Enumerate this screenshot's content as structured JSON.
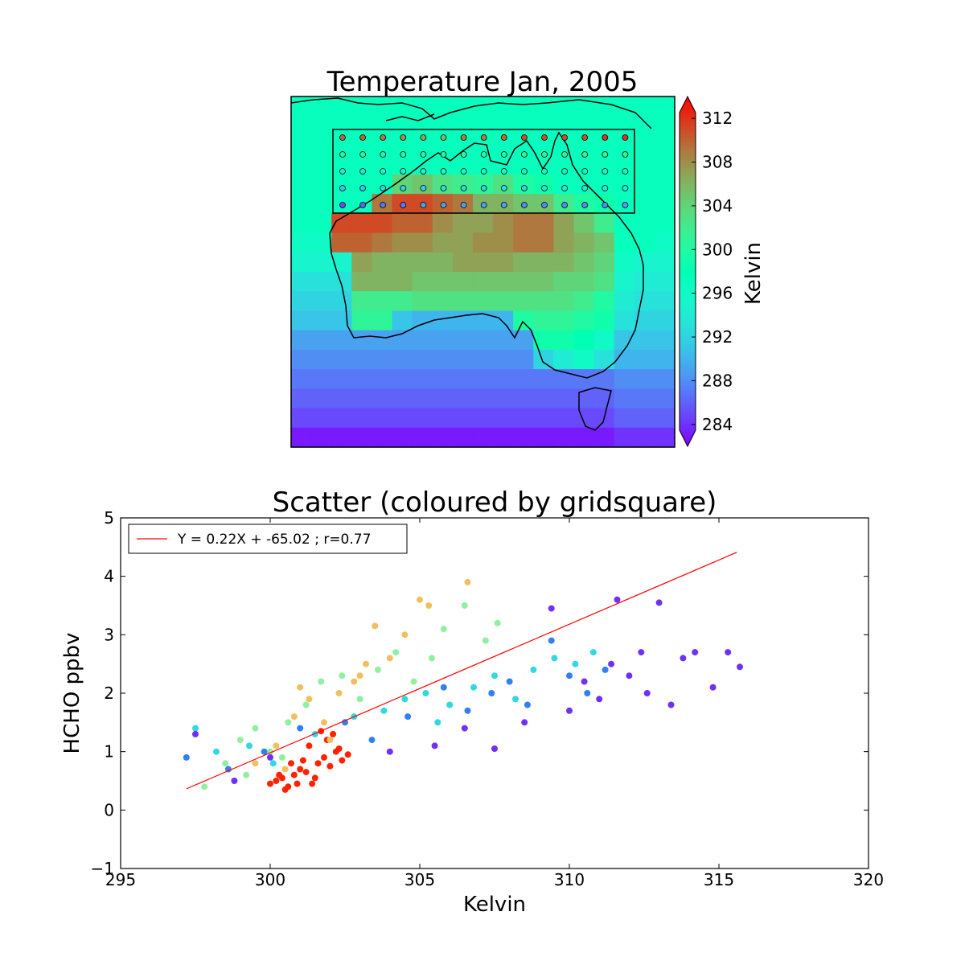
{
  "chart_data": [
    {
      "type": "heatmap",
      "title": "Temperature Jan, 2005",
      "colorbar": {
        "label": "Kelvin",
        "ticks": [
          "284",
          "288",
          "292",
          "296",
          "300",
          "304",
          "308",
          "312"
        ],
        "min": 282,
        "max": 314,
        "extend": "both",
        "colormap": "rainbow"
      },
      "grid_values": [
        [
          297,
          297,
          297,
          297,
          297,
          297,
          297,
          297,
          297,
          297,
          297,
          297,
          297,
          297,
          297,
          297,
          297,
          297,
          297
        ],
        [
          297,
          297,
          297,
          297,
          297,
          297,
          297,
          297,
          297,
          297,
          297,
          297,
          297,
          297,
          297,
          297,
          297,
          297,
          297
        ],
        [
          297,
          297,
          297,
          297,
          297,
          297,
          297,
          297,
          297,
          297,
          297,
          297,
          297,
          297,
          297,
          297,
          297,
          297,
          297
        ],
        [
          297,
          297,
          297,
          297,
          297,
          297,
          297,
          297,
          297,
          297,
          297,
          297,
          297,
          297,
          297,
          297,
          297,
          297,
          297
        ],
        [
          297,
          297,
          297,
          297,
          297,
          304,
          305,
          303,
          302,
          301,
          303,
          300,
          299,
          297,
          297,
          297,
          297,
          297,
          297
        ],
        [
          297,
          297,
          297,
          297,
          309,
          311,
          311,
          310,
          309,
          306,
          306,
          305,
          305,
          302,
          300,
          299,
          297,
          297,
          297
        ],
        [
          297,
          297,
          311,
          311,
          311,
          310,
          310,
          308,
          307,
          307,
          308,
          309,
          309,
          307,
          305,
          302,
          297,
          297,
          297
        ],
        [
          296,
          296,
          310,
          310,
          309,
          308,
          308,
          307,
          307,
          308,
          308,
          309,
          309,
          307,
          306,
          305,
          297,
          297,
          296
        ],
        [
          295,
          295,
          295,
          307,
          306,
          306,
          306,
          306,
          307,
          307,
          307,
          306,
          306,
          306,
          305,
          304,
          296,
          295,
          295
        ],
        [
          293,
          293,
          293,
          306,
          306,
          306,
          305,
          305,
          305,
          305,
          305,
          305,
          305,
          304,
          304,
          303,
          295,
          294,
          294
        ],
        [
          292,
          292,
          292,
          302,
          302,
          302,
          303,
          303,
          303,
          303,
          303,
          303,
          303,
          303,
          302,
          300,
          294,
          293,
          293
        ],
        [
          291,
          291,
          291,
          301,
          301,
          291,
          290,
          290,
          290,
          290,
          290,
          300,
          301,
          301,
          300,
          299,
          293,
          292,
          292
        ],
        [
          289,
          289,
          289,
          289,
          289,
          289,
          289,
          289,
          289,
          289,
          289,
          289,
          299,
          299,
          298,
          296,
          291,
          291,
          291
        ],
        [
          288,
          288,
          288,
          288,
          288,
          288,
          288,
          288,
          288,
          288,
          288,
          288,
          292,
          294,
          296,
          293,
          290,
          290,
          290
        ],
        [
          287,
          287,
          287,
          287,
          287,
          287,
          287,
          287,
          287,
          287,
          287,
          287,
          287,
          287,
          287,
          287,
          288,
          288,
          288
        ],
        [
          286,
          286,
          286,
          286,
          286,
          286,
          286,
          286,
          286,
          286,
          286,
          286,
          286,
          286,
          286,
          286,
          287,
          287,
          287
        ],
        [
          285,
          285,
          285,
          285,
          285,
          285,
          285,
          285,
          285,
          285,
          285,
          285,
          285,
          285,
          285,
          285,
          286,
          286,
          286
        ],
        [
          283,
          283,
          283,
          283,
          283,
          283,
          283,
          283,
          283,
          283,
          283,
          283,
          283,
          283,
          283,
          283,
          284,
          284,
          284
        ]
      ],
      "subset_box_points": [
        [
          310,
          310,
          309,
          308,
          307,
          306,
          309,
          309,
          310,
          311,
          311,
          311,
          311,
          312,
          312
        ],
        [
          300,
          300,
          300,
          300,
          300,
          301,
          301,
          300,
          300,
          301,
          301,
          301,
          301,
          301,
          302
        ],
        [
          294,
          294,
          295,
          295,
          295,
          296,
          296,
          296,
          296,
          297,
          297,
          297,
          297,
          297,
          297
        ],
        [
          291,
          291,
          292,
          292,
          292,
          293,
          293,
          292,
          293,
          292,
          294,
          294,
          294,
          294,
          294
        ],
        [
          285,
          286,
          287,
          287,
          289,
          289,
          289,
          289,
          289,
          288,
          288,
          288,
          288,
          288,
          289
        ]
      ]
    },
    {
      "type": "scatter",
      "title": "Scatter (coloured by gridsquare)",
      "xlabel": "Kelvin",
      "ylabel": "HCHO ppbv",
      "xlim": [
        295,
        320
      ],
      "ylim": [
        -1,
        5
      ],
      "xticks": [
        "295",
        "300",
        "305",
        "310",
        "315",
        "320"
      ],
      "yticks": [
        "−1",
        "0",
        "1",
        "2",
        "3",
        "4",
        "5"
      ],
      "legend": {
        "label": "Y = 0.22X + -65.02 ; r=0.77",
        "placement": "top-left",
        "color": "#ff0000"
      },
      "fit_line": {
        "slope": 0.22,
        "intercept": -65.02,
        "x": [
          297.2,
          315.6
        ]
      },
      "series": [
        {
          "color": "#ff2200",
          "points": [
            [
              300.0,
              0.45
            ],
            [
              300.2,
              0.5
            ],
            [
              300.4,
              0.55
            ],
            [
              300.6,
              0.4
            ],
            [
              300.8,
              0.6
            ],
            [
              301.0,
              0.7
            ],
            [
              301.2,
              0.65
            ],
            [
              301.4,
              0.45
            ],
            [
              301.6,
              0.8
            ],
            [
              301.8,
              0.9
            ],
            [
              302.0,
              0.75
            ],
            [
              302.2,
              1.0
            ],
            [
              302.4,
              0.85
            ],
            [
              300.5,
              0.35
            ],
            [
              300.9,
              0.45
            ],
            [
              301.5,
              0.55
            ],
            [
              301.9,
              1.2
            ],
            [
              302.1,
              1.3
            ],
            [
              302.3,
              1.05
            ],
            [
              301.7,
              1.35
            ],
            [
              300.3,
              0.6
            ],
            [
              301.1,
              0.85
            ],
            [
              302.6,
              0.95
            ],
            [
              300.7,
              0.8
            ],
            [
              301.3,
              1.1
            ]
          ]
        },
        {
          "color": "#f0c060",
          "points": [
            [
              299.5,
              0.8
            ],
            [
              300.2,
              1.1
            ],
            [
              300.8,
              1.6
            ],
            [
              301.3,
              1.9
            ],
            [
              301.8,
              1.5
            ],
            [
              302.3,
              2.0
            ],
            [
              302.8,
              2.2
            ],
            [
              303.2,
              2.5
            ],
            [
              303.5,
              3.15
            ],
            [
              304.0,
              2.6
            ],
            [
              304.5,
              3.0
            ],
            [
              305.0,
              3.6
            ],
            [
              305.3,
              3.5
            ],
            [
              306.6,
              3.9
            ],
            [
              303.0,
              2.3
            ],
            [
              302.0,
              1.2
            ],
            [
              300.5,
              0.7
            ],
            [
              301.0,
              2.1
            ]
          ]
        },
        {
          "color": "#90f0a0",
          "points": [
            [
              297.8,
              0.4
            ],
            [
              298.5,
              0.8
            ],
            [
              299.0,
              1.2
            ],
            [
              299.5,
              1.4
            ],
            [
              300.0,
              1.0
            ],
            [
              300.6,
              1.5
            ],
            [
              301.2,
              1.8
            ],
            [
              301.7,
              2.2
            ],
            [
              302.4,
              2.3
            ],
            [
              303.0,
              1.9
            ],
            [
              303.6,
              2.4
            ],
            [
              304.2,
              2.7
            ],
            [
              304.8,
              2.2
            ],
            [
              305.4,
              2.6
            ],
            [
              305.8,
              3.1
            ],
            [
              306.5,
              3.5
            ],
            [
              307.2,
              2.9
            ],
            [
              307.6,
              3.2
            ],
            [
              299.2,
              0.6
            ],
            [
              300.4,
              0.9
            ]
          ]
        },
        {
          "color": "#30d8e0",
          "points": [
            [
              297.5,
              1.4
            ],
            [
              298.2,
              1.0
            ],
            [
              299.3,
              1.1
            ],
            [
              300.1,
              0.8
            ],
            [
              301.5,
              1.3
            ],
            [
              302.8,
              1.6
            ],
            [
              303.8,
              1.7
            ],
            [
              304.5,
              1.9
            ],
            [
              305.2,
              2.0
            ],
            [
              306.0,
              1.8
            ],
            [
              306.8,
              2.1
            ],
            [
              307.5,
              2.3
            ],
            [
              308.2,
              1.9
            ],
            [
              308.8,
              2.4
            ],
            [
              309.5,
              2.6
            ],
            [
              310.2,
              2.5
            ],
            [
              310.8,
              2.7
            ],
            [
              305.6,
              1.5
            ]
          ]
        },
        {
          "color": "#3080f0",
          "points": [
            [
              297.2,
              0.9
            ],
            [
              298.6,
              0.7
            ],
            [
              299.8,
              1.0
            ],
            [
              301.0,
              1.4
            ],
            [
              302.5,
              1.5
            ],
            [
              303.4,
              1.2
            ],
            [
              304.6,
              1.6
            ],
            [
              305.8,
              2.1
            ],
            [
              306.6,
              1.7
            ],
            [
              307.4,
              2.0
            ],
            [
              308.0,
              2.2
            ],
            [
              308.6,
              1.8
            ],
            [
              309.4,
              2.9
            ],
            [
              310.0,
              2.3
            ],
            [
              310.6,
              2.0
            ],
            [
              311.2,
              2.4
            ]
          ]
        },
        {
          "color": "#7030f8",
          "points": [
            [
              297.5,
              1.3
            ],
            [
              298.8,
              0.5
            ],
            [
              300.0,
              0.9
            ],
            [
              304.0,
              1.0
            ],
            [
              305.5,
              1.1
            ],
            [
              306.5,
              1.4
            ],
            [
              307.5,
              1.05
            ],
            [
              308.5,
              1.5
            ],
            [
              309.4,
              3.45
            ],
            [
              310.0,
              1.7
            ],
            [
              310.5,
              2.2
            ],
            [
              311.0,
              1.9
            ],
            [
              311.6,
              3.6
            ],
            [
              312.0,
              2.3
            ],
            [
              312.6,
              2.0
            ],
            [
              313.0,
              3.55
            ],
            [
              313.4,
              1.8
            ],
            [
              313.8,
              2.6
            ],
            [
              314.2,
              2.7
            ],
            [
              314.8,
              2.1
            ],
            [
              315.3,
              2.7
            ],
            [
              315.7,
              2.45
            ],
            [
              312.4,
              2.7
            ],
            [
              311.4,
              2.5
            ]
          ]
        }
      ]
    }
  ]
}
